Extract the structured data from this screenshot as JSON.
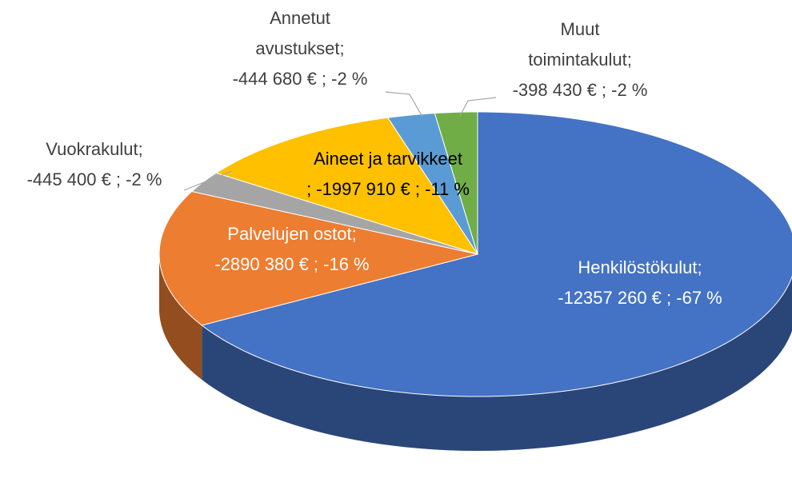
{
  "chart_data": {
    "type": "pie3d",
    "categories": [
      "Henkilöstökulut;",
      "Palvelujen ostot;",
      "Vuokrakulut;",
      "Aineet ja tarvikkeet",
      "Annetut avustukset;",
      "Muut toimintakulut;"
    ],
    "values": [
      -12357260,
      -2890380,
      -445400,
      -1997910,
      -444680,
      -398430
    ],
    "value_labels": [
      "-12357 260 € ; -67 %",
      "-2890 380 € ; -16 %",
      "-445 400 € ; -2 %",
      "; -1997 910 € ; -11 %",
      "-444 680 € ; -2 %",
      "-398 430 € ; -2 %"
    ],
    "colors": [
      "#4472c4",
      "#ed7d31",
      "#a5a5a5",
      "#ffc000",
      "#5b9bd5",
      "#70ad47"
    ]
  }
}
